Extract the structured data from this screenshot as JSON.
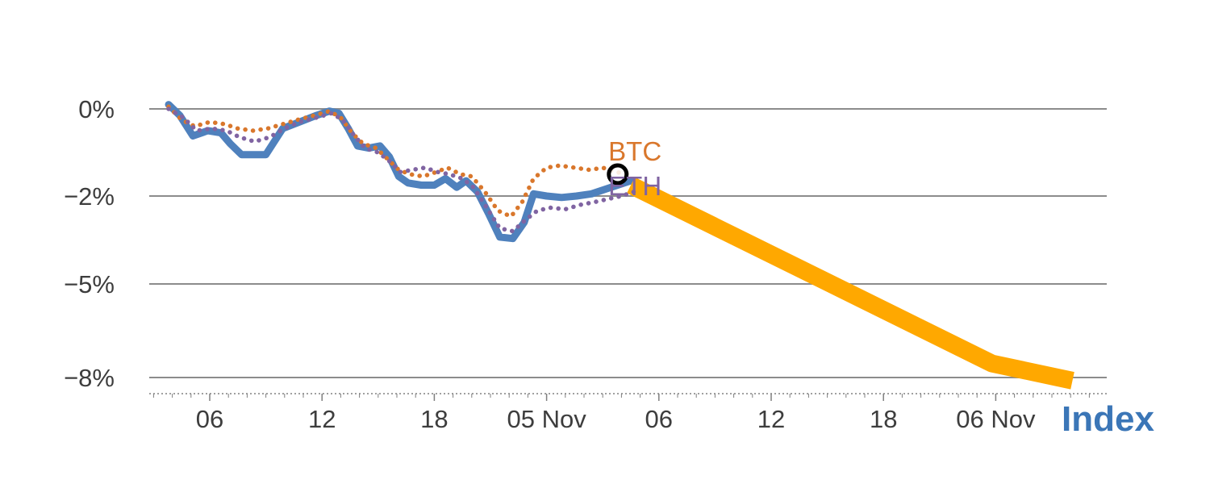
{
  "chart_data": {
    "type": "line",
    "title": "",
    "x_axis": {
      "title": "Index",
      "title_color": "#3b76b7",
      "range": [
        2.8,
        53.8
      ],
      "ticks": [
        {
          "t": 6,
          "label": "06"
        },
        {
          "t": 12,
          "label": "12"
        },
        {
          "t": 18,
          "label": "18"
        },
        {
          "t": 24,
          "label": "05 Nov"
        },
        {
          "t": 30,
          "label": "06"
        },
        {
          "t": 36,
          "label": "12"
        },
        {
          "t": 42,
          "label": "18"
        },
        {
          "t": 48,
          "label": "06 Nov"
        }
      ],
      "minor_tick_every": 1
    },
    "y_axis": {
      "unit": "%",
      "ticks": [
        {
          "v": 0,
          "label": "0%"
        },
        {
          "v": -2,
          "label": "−2%"
        },
        {
          "v": -5,
          "label": "−5%"
        },
        {
          "v": -8,
          "label": "−8%"
        }
      ]
    },
    "grid_color": "#8c8c8c",
    "axis_color": "#808080",
    "tick_label_color": "#3d3d3d",
    "series": [
      {
        "name": "Index",
        "color": "#4f81bd",
        "style": "solid",
        "width": 9,
        "cap": "round",
        "points": [
          [
            3.8,
            0.1
          ],
          [
            4.4,
            -0.15
          ],
          [
            5.1,
            -0.62
          ],
          [
            5.9,
            -0.5
          ],
          [
            6.6,
            -0.55
          ],
          [
            7.1,
            -0.8
          ],
          [
            7.7,
            -1.05
          ],
          [
            8.4,
            -1.05
          ],
          [
            9.0,
            -1.05
          ],
          [
            9.9,
            -0.45
          ],
          [
            10.8,
            -0.3
          ],
          [
            11.7,
            -0.15
          ],
          [
            12.4,
            -0.05
          ],
          [
            12.9,
            -0.1
          ],
          [
            13.4,
            -0.45
          ],
          [
            13.9,
            -0.85
          ],
          [
            14.5,
            -0.9
          ],
          [
            15.1,
            -0.85
          ],
          [
            15.6,
            -1.1
          ],
          [
            16.1,
            -1.55
          ],
          [
            16.6,
            -1.7
          ],
          [
            17.3,
            -1.75
          ],
          [
            18.0,
            -1.75
          ],
          [
            18.6,
            -1.6
          ],
          [
            19.2,
            -1.8
          ],
          [
            19.7,
            -1.65
          ],
          [
            20.3,
            -1.9
          ],
          [
            20.9,
            -2.6
          ],
          [
            21.5,
            -3.4
          ],
          [
            22.2,
            -3.45
          ],
          [
            22.8,
            -2.9
          ],
          [
            23.3,
            -1.95
          ],
          [
            24.0,
            -2.0
          ],
          [
            24.8,
            -2.05
          ],
          [
            25.6,
            -2.0
          ],
          [
            26.4,
            -1.95
          ],
          [
            27.1,
            -1.85
          ],
          [
            27.8,
            -1.75
          ],
          [
            28.5,
            -1.65
          ]
        ]
      },
      {
        "name": "",
        "color": "#ffa800",
        "style": "solid",
        "width": 22,
        "cap": "butt",
        "points": [
          [
            28.5,
            -1.75
          ],
          [
            47.8,
            -7.55
          ],
          [
            52.1,
            -8.1
          ]
        ]
      },
      {
        "name": "BTC",
        "color": "#d9772c",
        "style": "dotted",
        "width": 5.5,
        "cap": "round",
        "points": [
          [
            3.8,
            0.05
          ],
          [
            4.5,
            -0.25
          ],
          [
            5.2,
            -0.4
          ],
          [
            6.0,
            -0.3
          ],
          [
            6.8,
            -0.35
          ],
          [
            7.5,
            -0.45
          ],
          [
            8.3,
            -0.5
          ],
          [
            9.1,
            -0.45
          ],
          [
            9.9,
            -0.35
          ],
          [
            10.7,
            -0.25
          ],
          [
            11.6,
            -0.15
          ],
          [
            12.4,
            -0.05
          ],
          [
            13.0,
            -0.2
          ],
          [
            13.6,
            -0.55
          ],
          [
            14.2,
            -0.8
          ],
          [
            14.9,
            -0.9
          ],
          [
            15.5,
            -1.15
          ],
          [
            16.1,
            -1.4
          ],
          [
            16.7,
            -1.5
          ],
          [
            17.4,
            -1.55
          ],
          [
            18.1,
            -1.45
          ],
          [
            18.7,
            -1.35
          ],
          [
            19.4,
            -1.5
          ],
          [
            20.0,
            -1.55
          ],
          [
            20.7,
            -1.9
          ],
          [
            21.4,
            -2.5
          ],
          [
            22.1,
            -2.7
          ],
          [
            22.7,
            -2.2
          ],
          [
            23.3,
            -1.6
          ],
          [
            24.0,
            -1.35
          ],
          [
            24.7,
            -1.3
          ],
          [
            25.5,
            -1.35
          ],
          [
            26.3,
            -1.4
          ],
          [
            27.0,
            -1.35
          ],
          [
            27.7,
            -1.45
          ],
          [
            28.4,
            -1.5
          ]
        ]
      },
      {
        "name": "ETH",
        "color": "#8064a2",
        "style": "dotted",
        "width": 5.5,
        "cap": "round",
        "points": [
          [
            3.8,
            0.0
          ],
          [
            4.6,
            -0.2
          ],
          [
            5.3,
            -0.5
          ],
          [
            6.1,
            -0.45
          ],
          [
            6.9,
            -0.5
          ],
          [
            7.6,
            -0.65
          ],
          [
            8.4,
            -0.75
          ],
          [
            9.2,
            -0.65
          ],
          [
            10.0,
            -0.45
          ],
          [
            10.8,
            -0.3
          ],
          [
            11.7,
            -0.2
          ],
          [
            12.5,
            -0.1
          ],
          [
            13.1,
            -0.25
          ],
          [
            13.7,
            -0.6
          ],
          [
            14.3,
            -0.9
          ],
          [
            15.0,
            -1.0
          ],
          [
            15.6,
            -1.2
          ],
          [
            16.2,
            -1.45
          ],
          [
            16.8,
            -1.4
          ],
          [
            17.5,
            -1.35
          ],
          [
            18.2,
            -1.45
          ],
          [
            18.8,
            -1.5
          ],
          [
            19.5,
            -1.6
          ],
          [
            20.1,
            -1.8
          ],
          [
            20.8,
            -2.4
          ],
          [
            21.5,
            -3.1
          ],
          [
            22.2,
            -3.2
          ],
          [
            22.9,
            -2.8
          ],
          [
            23.5,
            -2.5
          ],
          [
            24.2,
            -2.4
          ],
          [
            25.0,
            -2.45
          ],
          [
            25.8,
            -2.3
          ],
          [
            26.6,
            -2.2
          ],
          [
            27.3,
            -2.1
          ],
          [
            28.0,
            -2.0
          ],
          [
            28.7,
            -1.9
          ]
        ]
      }
    ],
    "point_marker": {
      "t": 27.8,
      "v": -1.5,
      "shape": "open-circle",
      "color": "#000000"
    },
    "series_labels": [
      {
        "text": "BTC",
        "color": "#d9772c",
        "t": 27.3,
        "v": -0.98
      },
      {
        "text": "ETH",
        "color": "#8064a2",
        "t": 27.3,
        "v": -1.78
      }
    ]
  }
}
